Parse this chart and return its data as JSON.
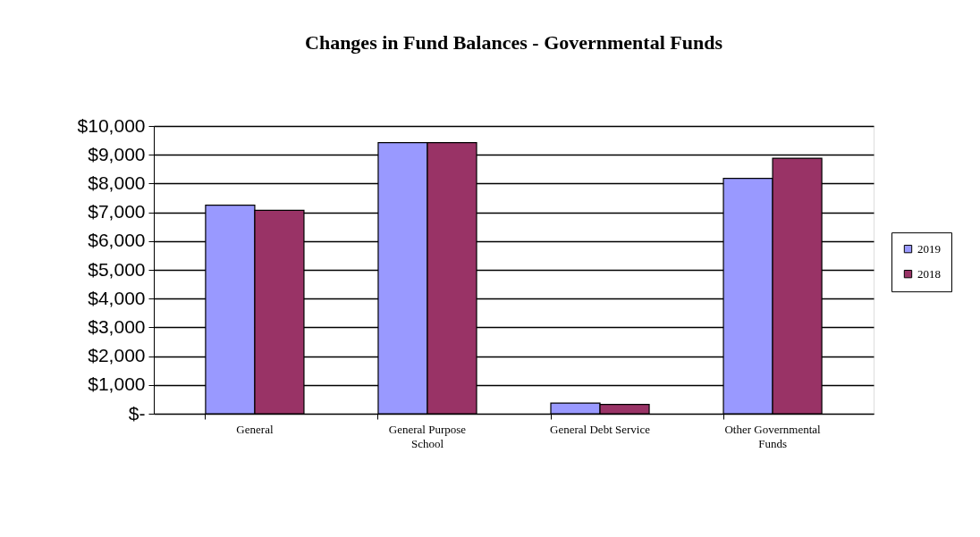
{
  "chart_data": {
    "type": "bar",
    "title": "Changes in Fund Balances - Governmental Funds",
    "categories": [
      "General",
      "General Purpose School",
      "General Debt Service",
      "Other Governmental Funds"
    ],
    "series": [
      {
        "name": "2019",
        "color": "#9999ff",
        "values": [
          7250,
          9420,
          370,
          8180
        ]
      },
      {
        "name": "2018",
        "color": "#993366",
        "values": [
          7070,
          9420,
          320,
          8880
        ]
      }
    ],
    "ylim": [
      0,
      10000
    ],
    "yticks": [
      {
        "value": 0,
        "label": "$-"
      },
      {
        "value": 1000,
        "label": "$1,000"
      },
      {
        "value": 2000,
        "label": "$2,000"
      },
      {
        "value": 3000,
        "label": "$3,000"
      },
      {
        "value": 4000,
        "label": "$4,000"
      },
      {
        "value": 5000,
        "label": "$5,000"
      },
      {
        "value": 6000,
        "label": "$6,000"
      },
      {
        "value": 7000,
        "label": "$7,000"
      },
      {
        "value": 8000,
        "label": "$8,000"
      },
      {
        "value": 9000,
        "label": "$9,000"
      },
      {
        "value": 10000,
        "label": "$10,000"
      }
    ],
    "grid": "y",
    "legend": "right"
  }
}
